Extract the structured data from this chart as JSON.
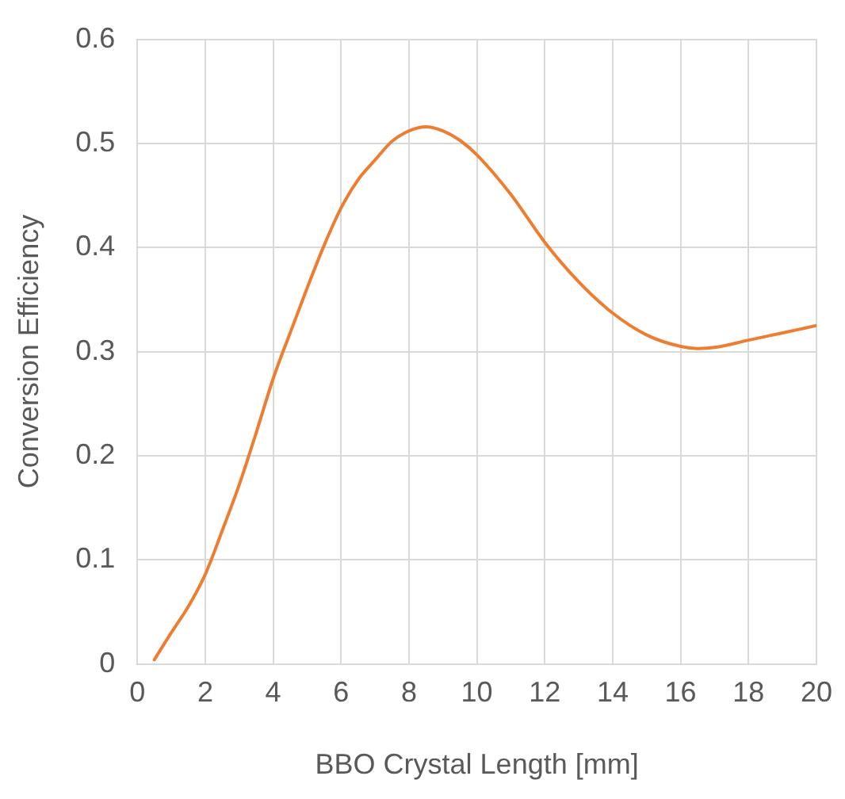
{
  "chart_data": {
    "type": "line",
    "xlabel": "BBO Crystal Length [mm]",
    "ylabel": "Conversion Efficiency",
    "x": [
      0.5,
      1,
      1.5,
      2,
      2.5,
      3,
      3.5,
      4,
      4.5,
      5,
      5.5,
      6,
      6.5,
      7,
      7.5,
      8,
      8.5,
      9,
      9.5,
      10,
      11,
      12,
      13,
      14,
      15,
      16,
      16.5,
      17,
      18,
      19,
      20
    ],
    "series": [
      {
        "color": "#ed7d31",
        "values": [
          0.004,
          0.03,
          0.055,
          0.086,
          0.128,
          0.172,
          0.222,
          0.274,
          0.318,
          0.361,
          0.402,
          0.438,
          0.465,
          0.484,
          0.502,
          0.512,
          0.516,
          0.512,
          0.503,
          0.489,
          0.451,
          0.405,
          0.367,
          0.337,
          0.316,
          0.305,
          0.303,
          0.304,
          0.311,
          0.318,
          0.325
        ]
      }
    ],
    "xlim": [
      0,
      20
    ],
    "xticks": [
      0,
      2,
      4,
      6,
      8,
      10,
      12,
      14,
      16,
      18,
      20
    ],
    "ylim": [
      0,
      0.6
    ],
    "yticks": [
      0,
      0.1,
      0.2,
      0.3,
      0.4,
      0.5,
      0.6
    ],
    "grid": true,
    "legend": false,
    "marker": "none",
    "line_style": "solid"
  }
}
